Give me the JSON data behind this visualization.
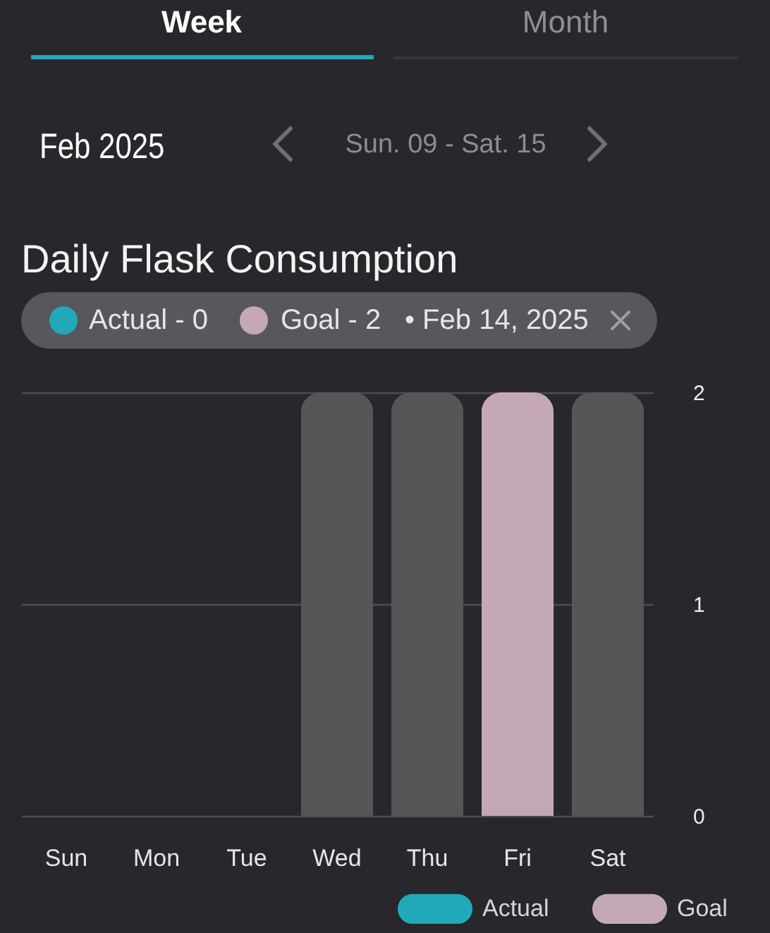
{
  "chart_data": {
    "type": "bar",
    "title": "Daily Flask Consumption",
    "categories": [
      "Sun",
      "Mon",
      "Tue",
      "Wed",
      "Thu",
      "Fri",
      "Sat"
    ],
    "series": [
      {
        "name": "Actual",
        "color": "#1fa9b9",
        "values": [
          0,
          0,
          0,
          0,
          0,
          0,
          0
        ]
      },
      {
        "name": "Goal",
        "color": "#c5a8b6",
        "colors": [
          "#565659",
          "#565659",
          "#565659",
          "#565659",
          "#565659",
          "#c5a8b6",
          "#565659"
        ],
        "values": [
          0,
          0,
          0,
          2,
          2,
          2,
          2
        ]
      }
    ],
    "ylim": [
      0,
      2
    ],
    "yticks": [
      0,
      1,
      2
    ],
    "grid": "y",
    "legend": "bottom right",
    "annotations": [
      "Week",
      "Month",
      "Feb 2025",
      "Sun. 09 - Sat. 15",
      "Actual - 0",
      "Goal - 2",
      "• Feb 14, 2025"
    ]
  }
}
